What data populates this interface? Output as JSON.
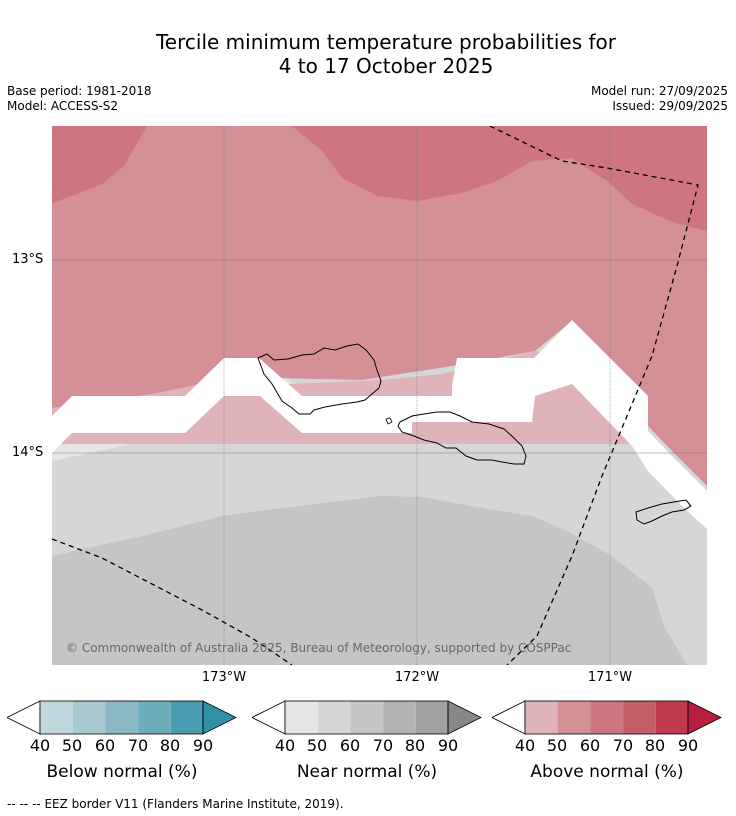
{
  "header": {
    "title_line1": "Tercile minimum temperature probabilities for",
    "title_line2": "4 to 17 October 2025",
    "base_period": "Base period: 1981-2018",
    "model": "Model: ACCESS-S2",
    "model_run": "Model run: 27/09/2025",
    "issued": "Issued: 29/09/2025"
  },
  "map": {
    "lat_labels": [
      "13°S",
      "14°S"
    ],
    "lon_labels": [
      "173°W",
      "172°W",
      "171°W"
    ],
    "copyright": "© Commonwealth of Australia 2025, Bureau of Meteorology, supported by COSPPac"
  },
  "colorbars": [
    {
      "name": "below",
      "label": "Below normal (%)",
      "ticks": [
        "40",
        "50",
        "60",
        "70",
        "80",
        "90"
      ],
      "colors": [
        "#c1d7de",
        "#a7c9cf",
        "#8bb8c3",
        "#6cadbb",
        "#4a9db0",
        "#3290a5"
      ]
    },
    {
      "name": "near",
      "label": "Near normal (%)",
      "ticks": [
        "40",
        "50",
        "60",
        "70",
        "80",
        "90"
      ],
      "colors": [
        "#e6e6e6",
        "#d6d6d6",
        "#c5c5c5",
        "#b3b3b3",
        "#a2a2a2",
        "#888888"
      ]
    },
    {
      "name": "above",
      "label": "Above normal (%)",
      "ticks": [
        "40",
        "50",
        "60",
        "70",
        "80",
        "90"
      ],
      "colors": [
        "#e0b3b8",
        "#d48f97",
        "#cd7680",
        "#c55d69",
        "#c0394e",
        "#b71f3d"
      ]
    }
  ],
  "footer": {
    "legend_marker": "--  --  --",
    "legend_text": "EEZ border V11 (Flanders Marine Institute, 2019)."
  }
}
